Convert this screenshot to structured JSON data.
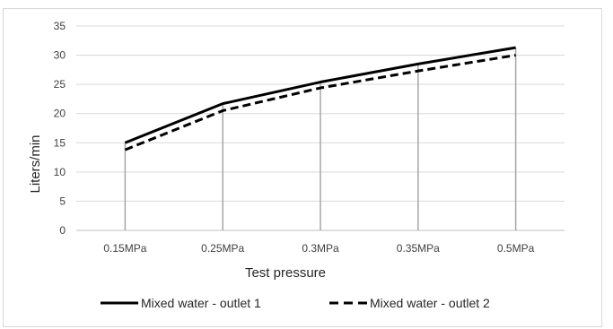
{
  "chart_data": {
    "type": "line",
    "title": "",
    "xlabel": "Test pressure",
    "ylabel": "Liters/min",
    "categories": [
      "0.15MPa",
      "0.25MPa",
      "0.3MPa",
      "0.35MPa",
      "0.5MPa"
    ],
    "ylim": [
      0,
      35
    ],
    "yticks": [
      0,
      5,
      10,
      15,
      20,
      25,
      30,
      35
    ],
    "grid": true,
    "drop_lines": true,
    "legend_position": "bottom",
    "series": [
      {
        "name": "Mixed water - outlet 1",
        "values": [
          15.0,
          21.7,
          25.4,
          28.5,
          31.3
        ],
        "color": "#000000",
        "style": "solid"
      },
      {
        "name": "Mixed water - outlet 2",
        "values": [
          13.8,
          20.5,
          24.4,
          27.3,
          30.0
        ],
        "color": "#000000",
        "style": "dashed"
      }
    ]
  }
}
